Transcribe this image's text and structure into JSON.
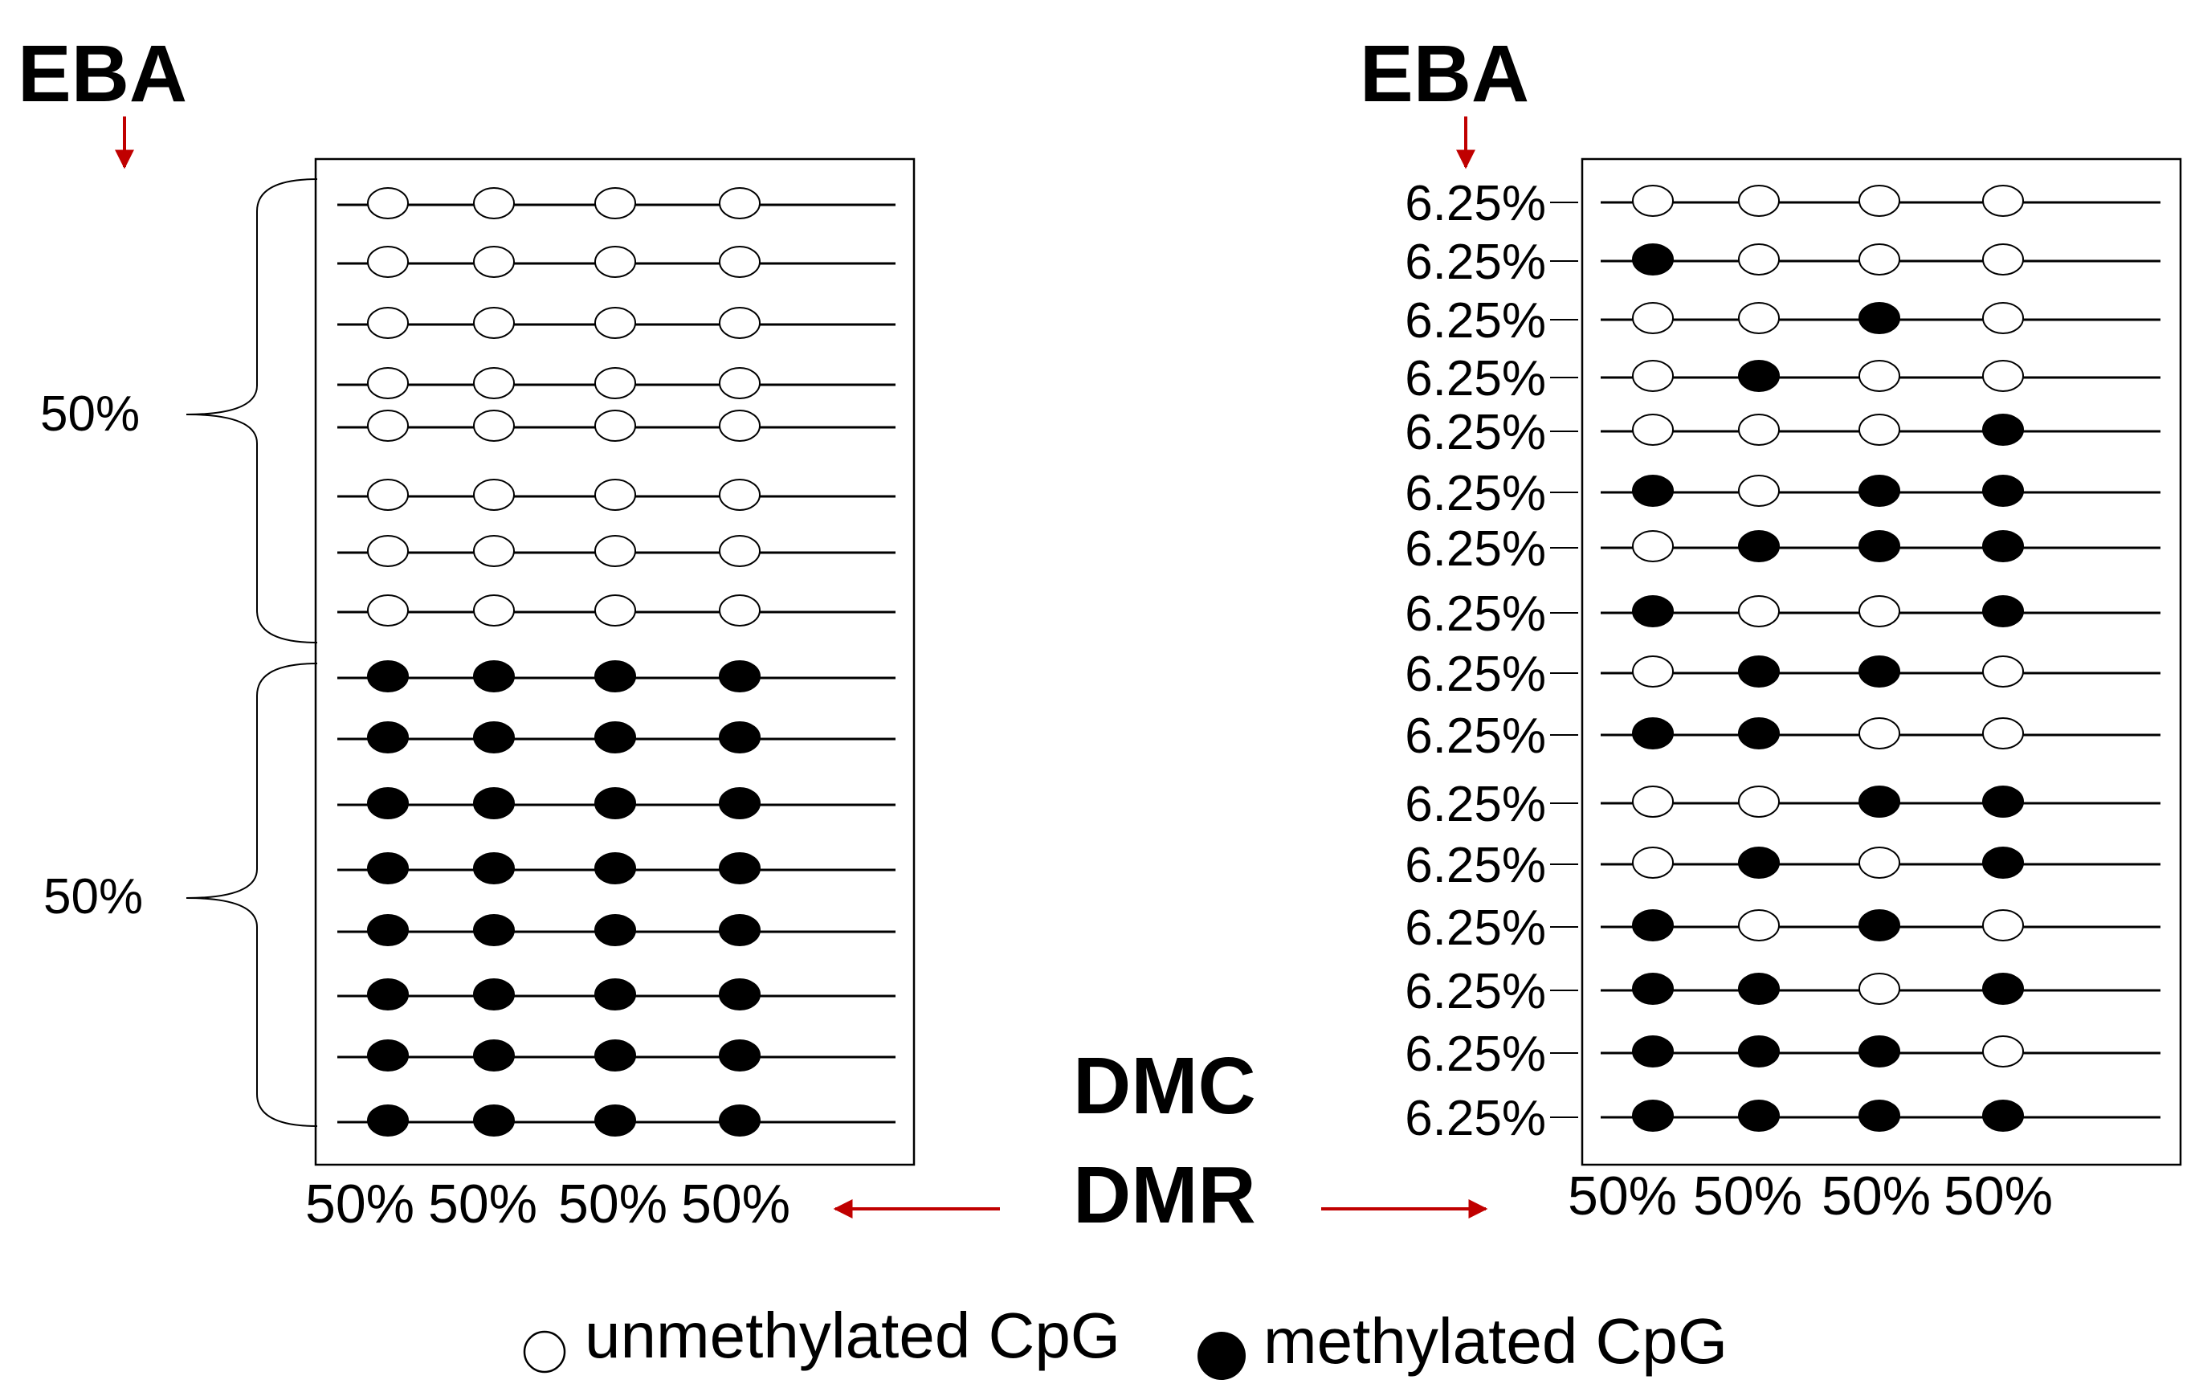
{
  "colors": {
    "arrow": "#c00000",
    "ink": "#000000",
    "paper": "#ffffff"
  },
  "left_panel": {
    "eba_label": "EBA",
    "group_labels": [
      "50%",
      "50%"
    ],
    "column_labels": [
      "50%",
      "50%",
      "50%",
      "50%"
    ],
    "rows": [
      [
        0,
        0,
        0,
        0
      ],
      [
        0,
        0,
        0,
        0
      ],
      [
        0,
        0,
        0,
        0
      ],
      [
        0,
        0,
        0,
        0
      ],
      [
        0,
        0,
        0,
        0
      ],
      [
        0,
        0,
        0,
        0
      ],
      [
        0,
        0,
        0,
        0
      ],
      [
        0,
        0,
        0,
        0
      ],
      [
        1,
        1,
        1,
        1
      ],
      [
        1,
        1,
        1,
        1
      ],
      [
        1,
        1,
        1,
        1
      ],
      [
        1,
        1,
        1,
        1
      ],
      [
        1,
        1,
        1,
        1
      ],
      [
        1,
        1,
        1,
        1
      ],
      [
        1,
        1,
        1,
        1
      ],
      [
        1,
        1,
        1,
        1
      ]
    ]
  },
  "right_panel": {
    "eba_label": "EBA",
    "row_labels": [
      "6.25%",
      "6.25%",
      "6.25%",
      "6.25%",
      "6.25%",
      "6.25%",
      "6.25%",
      "6.25%",
      "6.25%",
      "6.25%",
      "6.25%",
      "6.25%",
      "6.25%",
      "6.25%",
      "6.25%",
      "6.25%"
    ],
    "column_labels": [
      "50%",
      "50%",
      "50%",
      "50%"
    ],
    "rows": [
      [
        0,
        0,
        0,
        0
      ],
      [
        1,
        0,
        0,
        0
      ],
      [
        0,
        0,
        1,
        0
      ],
      [
        0,
        1,
        0,
        0
      ],
      [
        0,
        0,
        0,
        1
      ],
      [
        1,
        0,
        1,
        1
      ],
      [
        0,
        1,
        1,
        1
      ],
      [
        1,
        0,
        0,
        1
      ],
      [
        0,
        1,
        1,
        0
      ],
      [
        1,
        1,
        0,
        0
      ],
      [
        0,
        0,
        1,
        1
      ],
      [
        0,
        1,
        0,
        1
      ],
      [
        1,
        0,
        1,
        0
      ],
      [
        1,
        1,
        0,
        1
      ],
      [
        1,
        1,
        1,
        0
      ],
      [
        1,
        1,
        1,
        1
      ]
    ]
  },
  "center": {
    "dmc_label": "DMC",
    "dmr_label": "DMR"
  },
  "legend": {
    "unmethylated_label": "unmethylated CpG",
    "methylated_label": "methylated CpG",
    "unmethylated_icon": "open-circle-icon",
    "methylated_icon": "filled-circle-icon"
  }
}
